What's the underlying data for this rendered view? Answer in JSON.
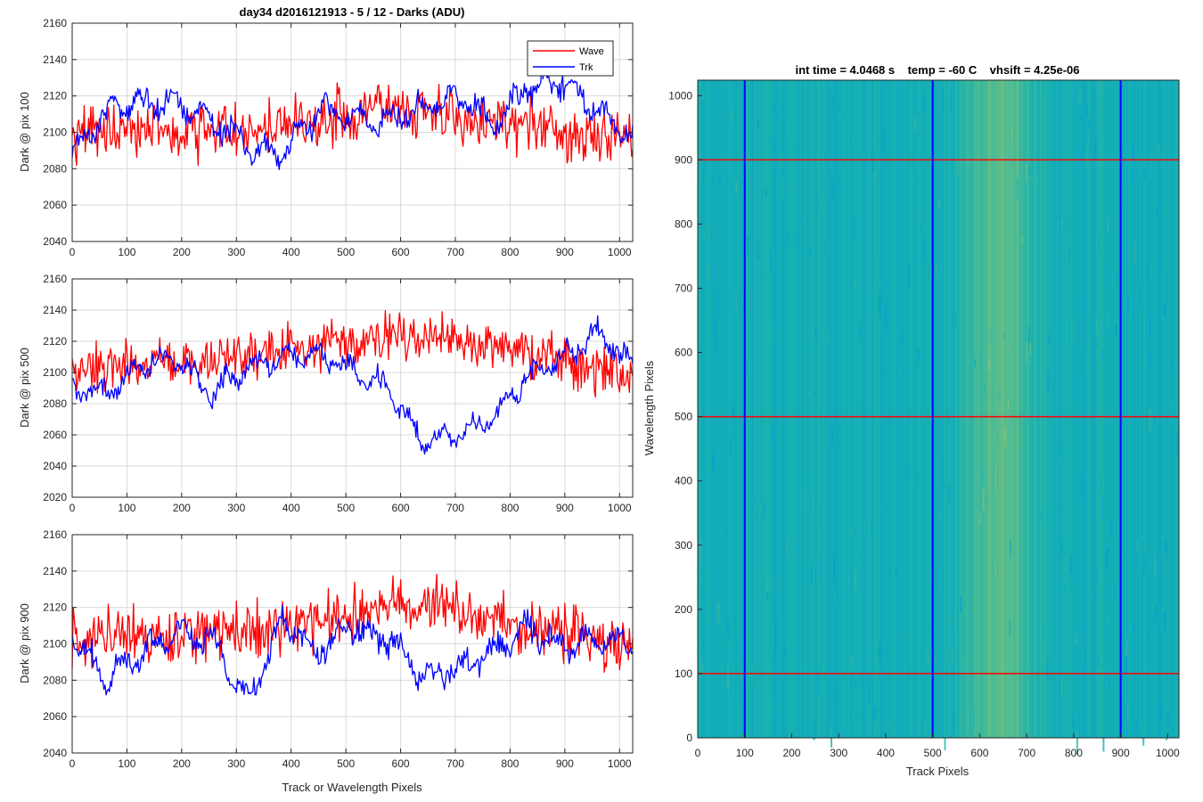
{
  "figure": {
    "title": "day34 d2016121913 - 5 / 12 - Darks (ADU)",
    "xlabel": "Track or Wavelength Pixels"
  },
  "colors": {
    "wave": "#ff0000",
    "trk": "#0000ff",
    "grid": "#d9d9d9",
    "axis": "#262626"
  },
  "legend": {
    "placement": "top-right",
    "entries": [
      "Wave",
      "Trk"
    ]
  },
  "chart_data": [
    {
      "type": "line",
      "ylabel": "Dark @ pix 100",
      "xlim": [
        0,
        1024
      ],
      "ylim": [
        2040,
        2160
      ],
      "xticks": [
        0,
        100,
        200,
        300,
        400,
        500,
        600,
        700,
        800,
        900,
        1000
      ],
      "yticks": [
        2040,
        2060,
        2080,
        2100,
        2120,
        2140,
        2160
      ],
      "grid": true,
      "series": [
        {
          "name": "Wave",
          "color": "#ff0000",
          "x": [
            0,
            64,
            128,
            192,
            256,
            320,
            384,
            448,
            512,
            576,
            640,
            704,
            768,
            832,
            896,
            960,
            1024
          ],
          "values": [
            2098,
            2104,
            2102,
            2100,
            2102,
            2100,
            2104,
            2106,
            2108,
            2118,
            2112,
            2106,
            2104,
            2104,
            2100,
            2098,
            2100
          ]
        },
        {
          "name": "Trk",
          "color": "#0000ff",
          "x": [
            0,
            64,
            128,
            192,
            256,
            320,
            384,
            448,
            512,
            576,
            640,
            704,
            768,
            832,
            896,
            960,
            1024
          ],
          "values": [
            2088,
            2112,
            2118,
            2116,
            2106,
            2094,
            2088,
            2112,
            2108,
            2106,
            2114,
            2120,
            2104,
            2126,
            2128,
            2112,
            2098
          ]
        }
      ]
    },
    {
      "type": "line",
      "ylabel": "Dark @ pix 500",
      "xlim": [
        0,
        1024
      ],
      "ylim": [
        2020,
        2160
      ],
      "xticks": [
        0,
        100,
        200,
        300,
        400,
        500,
        600,
        700,
        800,
        900,
        1000
      ],
      "yticks": [
        2020,
        2040,
        2060,
        2080,
        2100,
        2120,
        2140,
        2160
      ],
      "grid": true,
      "series": [
        {
          "name": "Wave",
          "color": "#ff0000",
          "x": [
            0,
            64,
            128,
            192,
            256,
            320,
            384,
            448,
            512,
            576,
            640,
            704,
            768,
            832,
            896,
            960,
            1024
          ],
          "values": [
            2100,
            2104,
            2108,
            2104,
            2110,
            2112,
            2114,
            2118,
            2118,
            2122,
            2124,
            2120,
            2116,
            2110,
            2106,
            2104,
            2100
          ]
        },
        {
          "name": "Trk",
          "color": "#0000ff",
          "x": [
            0,
            64,
            128,
            192,
            256,
            320,
            384,
            448,
            512,
            576,
            640,
            704,
            768,
            832,
            896,
            960,
            1024
          ],
          "values": [
            2090,
            2088,
            2106,
            2110,
            2086,
            2104,
            2110,
            2112,
            2100,
            2090,
            2056,
            2060,
            2070,
            2098,
            2108,
            2126,
            2104
          ]
        }
      ]
    },
    {
      "type": "line",
      "ylabel": "Dark @ pix 900",
      "xlim": [
        0,
        1024
      ],
      "ylim": [
        2040,
        2160
      ],
      "xticks": [
        0,
        100,
        200,
        300,
        400,
        500,
        600,
        700,
        800,
        900,
        1000
      ],
      "yticks": [
        2040,
        2060,
        2080,
        2100,
        2120,
        2140,
        2160
      ],
      "grid": true,
      "series": [
        {
          "name": "Wave",
          "color": "#ff0000",
          "x": [
            0,
            64,
            128,
            192,
            256,
            320,
            384,
            448,
            512,
            576,
            640,
            704,
            768,
            832,
            896,
            960,
            1024
          ],
          "values": [
            2100,
            2102,
            2104,
            2102,
            2106,
            2106,
            2110,
            2112,
            2116,
            2120,
            2122,
            2118,
            2112,
            2108,
            2106,
            2102,
            2098
          ]
        },
        {
          "name": "Trk",
          "color": "#0000ff",
          "x": [
            0,
            64,
            128,
            192,
            256,
            320,
            384,
            448,
            512,
            576,
            640,
            704,
            768,
            832,
            896,
            960,
            1024
          ],
          "values": [
            2104,
            2080,
            2096,
            2106,
            2102,
            2068,
            2112,
            2096,
            2110,
            2102,
            2082,
            2086,
            2096,
            2110,
            2098,
            2104,
            2098
          ]
        }
      ]
    },
    {
      "type": "heatmap",
      "title": "int time = 4.0468 s    temp = -60 C    vhsift = 4.25e-06",
      "xlabel": "Track Pixels",
      "ylabel": "Wavelength Pixels",
      "xlim": [
        0,
        1024
      ],
      "ylim": [
        0,
        1024
      ],
      "xticks": [
        0,
        100,
        200,
        300,
        400,
        500,
        600,
        700,
        800,
        900,
        1000
      ],
      "yticks": [
        0,
        100,
        200,
        300,
        400,
        500,
        600,
        700,
        800,
        900,
        1000
      ],
      "colormap": "parula",
      "bright_band": [
        560,
        720
      ],
      "vlines": {
        "color": "#0000ff",
        "x": [
          100,
          500,
          900
        ]
      },
      "hlines": {
        "color": "#ff0000",
        "y": [
          100,
          500,
          900
        ]
      }
    }
  ]
}
